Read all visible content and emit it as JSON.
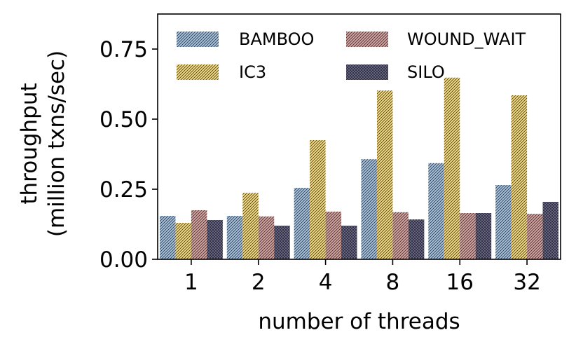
{
  "chart_data": {
    "type": "bar",
    "xlabel": "number of threads",
    "ylabel_lines": [
      "throughput",
      "(million txns/sec)"
    ],
    "categories": [
      "1",
      "2",
      "4",
      "8",
      "16",
      "32"
    ],
    "ylim": [
      0,
      0.875
    ],
    "yticks": [
      "0.00",
      "0.25",
      "0.50",
      "0.75"
    ],
    "ytick_values": [
      0,
      0.25,
      0.5,
      0.75
    ],
    "grid": false,
    "legend_position": "top",
    "series": [
      {
        "name": "BAMBOO",
        "color": "#a9c4e0",
        "hatch": "diag",
        "values": [
          0.155,
          0.155,
          0.255,
          0.357,
          0.343,
          0.265
        ]
      },
      {
        "name": "IC3",
        "color": "#f5dc88",
        "hatch": "diag",
        "values": [
          0.13,
          0.237,
          0.425,
          0.602,
          0.648,
          0.585
        ]
      },
      {
        "name": "WOUND_WAIT",
        "color": "#d4a7a5",
        "hatch": "diag",
        "values": [
          0.175,
          0.153,
          0.17,
          0.168,
          0.165,
          0.162
        ]
      },
      {
        "name": "SILO",
        "color": "#6f6f8f",
        "hatch": "cross",
        "values": [
          0.14,
          0.12,
          0.12,
          0.142,
          0.165,
          0.205
        ]
      }
    ]
  }
}
